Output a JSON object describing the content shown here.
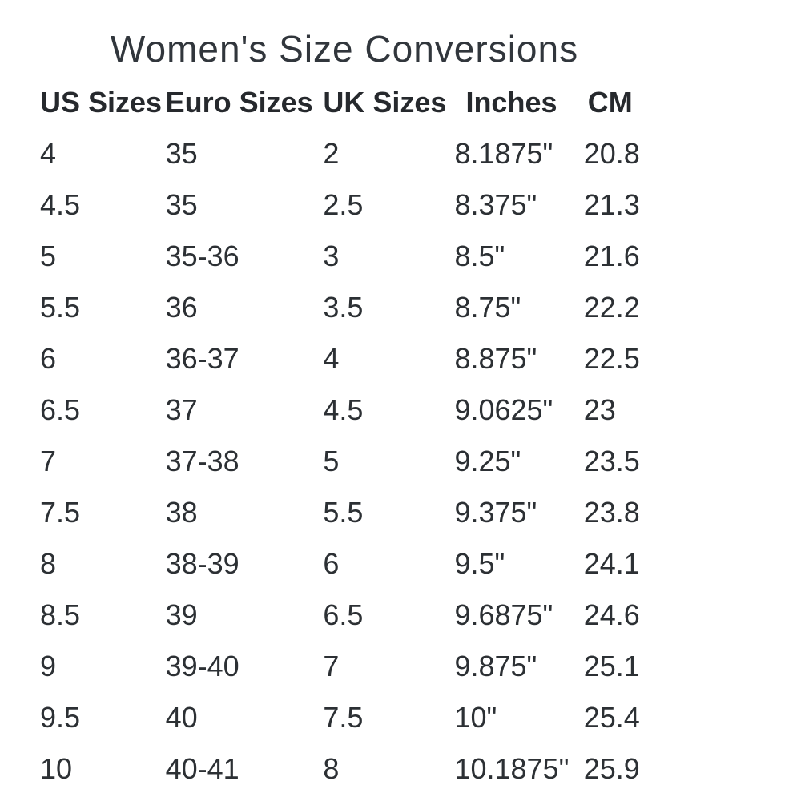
{
  "title": "Women's Size Conversions",
  "colors": {
    "background": "#ffffff",
    "text": "#2c3034",
    "header_text": "#26292d"
  },
  "table": {
    "columns": [
      "US Sizes",
      "Euro Sizes",
      "UK Sizes",
      "Inches",
      "CM"
    ],
    "rows": [
      [
        "4",
        "35",
        "2",
        "8.1875\"",
        "20.8"
      ],
      [
        "4.5",
        "35",
        "2.5",
        "8.375\"",
        "21.3"
      ],
      [
        "5",
        "35-36",
        "3",
        "8.5\"",
        "21.6"
      ],
      [
        "5.5",
        "36",
        "3.5",
        "8.75\"",
        "22.2"
      ],
      [
        "6",
        "36-37",
        "4",
        "8.875\"",
        "22.5"
      ],
      [
        "6.5",
        "37",
        "4.5",
        "9.0625\"",
        "23"
      ],
      [
        "7",
        "37-38",
        "5",
        "9.25\"",
        "23.5"
      ],
      [
        "7.5",
        "38",
        "5.5",
        "9.375\"",
        "23.8"
      ],
      [
        "8",
        "38-39",
        "6",
        "9.5\"",
        "24.1"
      ],
      [
        "8.5",
        "39",
        "6.5",
        "9.6875\"",
        "24.6"
      ],
      [
        "9",
        "39-40",
        "7",
        "9.875\"",
        "25.1"
      ],
      [
        "9.5",
        "40",
        "7.5",
        "10\"",
        "25.4"
      ],
      [
        "10",
        "40-41",
        "8",
        "10.1875\"",
        "25.9"
      ]
    ]
  },
  "chart_data": {
    "type": "table",
    "title": "Women's Size Conversions",
    "columns": [
      "US Sizes",
      "Euro Sizes",
      "UK Sizes",
      "Inches",
      "CM"
    ],
    "rows": [
      [
        "4",
        "35",
        "2",
        "8.1875\"",
        "20.8"
      ],
      [
        "4.5",
        "35",
        "2.5",
        "8.375\"",
        "21.3"
      ],
      [
        "5",
        "35-36",
        "3",
        "8.5\"",
        "21.6"
      ],
      [
        "5.5",
        "36",
        "3.5",
        "8.75\"",
        "22.2"
      ],
      [
        "6",
        "36-37",
        "4",
        "8.875\"",
        "22.5"
      ],
      [
        "6.5",
        "37",
        "4.5",
        "9.0625\"",
        "23"
      ],
      [
        "7",
        "37-38",
        "5",
        "9.25\"",
        "23.5"
      ],
      [
        "7.5",
        "38",
        "5.5",
        "9.375\"",
        "23.8"
      ],
      [
        "8",
        "38-39",
        "6",
        "9.5\"",
        "24.1"
      ],
      [
        "8.5",
        "39",
        "6.5",
        "9.6875\"",
        "24.6"
      ],
      [
        "9",
        "39-40",
        "7",
        "9.875\"",
        "25.1"
      ],
      [
        "9.5",
        "40",
        "7.5",
        "10\"",
        "25.4"
      ],
      [
        "10",
        "40-41",
        "8",
        "10.1875\"",
        "25.9"
      ]
    ],
    "us_sizes": [
      4,
      4.5,
      5,
      5.5,
      6,
      6.5,
      7,
      7.5,
      8,
      8.5,
      9,
      9.5,
      10
    ],
    "uk_sizes": [
      2,
      2.5,
      3,
      3.5,
      4,
      4.5,
      5,
      5.5,
      6,
      6.5,
      7,
      7.5,
      8
    ],
    "inches": [
      8.1875,
      8.375,
      8.5,
      8.75,
      8.875,
      9.0625,
      9.25,
      9.375,
      9.5,
      9.6875,
      9.875,
      10,
      10.1875
    ],
    "cm": [
      20.8,
      21.3,
      21.6,
      22.2,
      22.5,
      23,
      23.5,
      23.8,
      24.1,
      24.6,
      25.1,
      25.4,
      25.9
    ]
  }
}
